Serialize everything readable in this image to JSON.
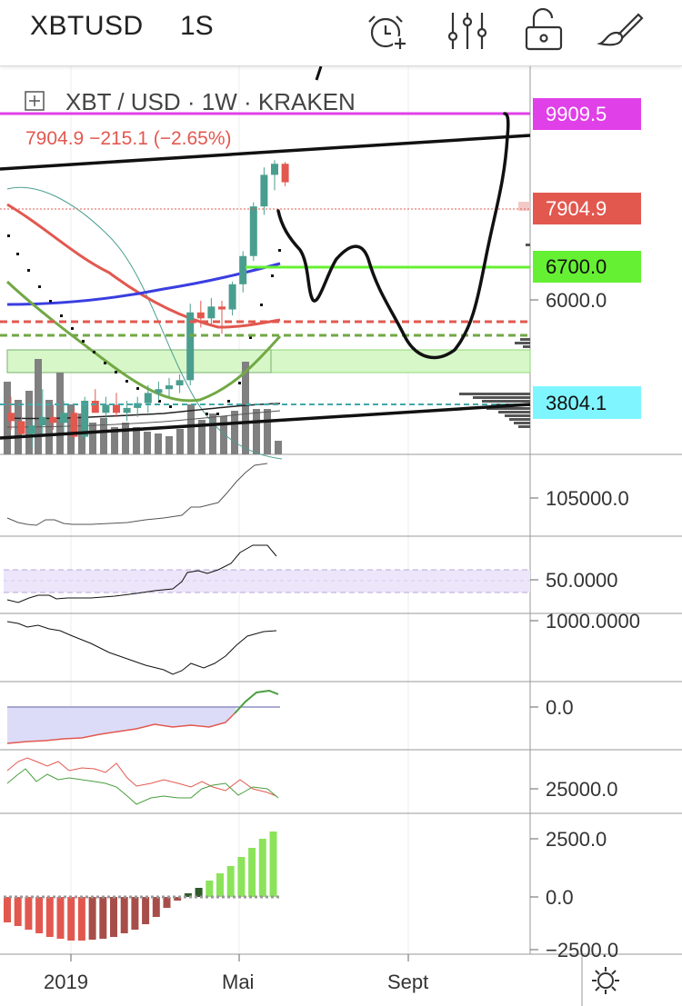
{
  "toolbar": {
    "symbol": "XBTUSD",
    "interval": "1S",
    "icons": [
      "alarm-add-icon",
      "indicators-icon",
      "lock-icon",
      "drawing-brush-icon"
    ]
  },
  "legend": {
    "title": "XBT / USD · 1W · KRAKEN",
    "quote": "7904.9  −215.1 (−2.65%)"
  },
  "colors": {
    "up": "#4a9e8f",
    "down": "#e2584f",
    "magenta": "#e040e8",
    "green_level": "#66f033",
    "cyan_level": "#7ff6ff",
    "ma_blue": "#3a3ee0",
    "ma_red": "#e2584f",
    "ma_green": "#72a845"
  },
  "price_tags": [
    {
      "label": "9909.5",
      "price": 9909.5,
      "color": "#e040e8"
    },
    {
      "label": "7904.9",
      "price": 7904.9,
      "color": "#e2584f"
    },
    {
      "label": "6700.0",
      "price": 6700.0,
      "color": "#66f033"
    },
    {
      "label": "6000.0",
      "price": 6000.0,
      "color": ""
    },
    {
      "label": "3804.1",
      "price": 3804.1,
      "color": "#7ff6ff"
    }
  ],
  "panes": [
    {
      "name": "volume-oscillator",
      "label": "105000.0"
    },
    {
      "name": "rsi",
      "label": "50.0000"
    },
    {
      "name": "indicator-3",
      "label": "1000.0000"
    },
    {
      "name": "indicator-4",
      "label": "0.0"
    },
    {
      "name": "indicator-5",
      "label": "25000.0"
    },
    {
      "name": "momentum-histogram",
      "labels": [
        "2500.0",
        "0.0",
        "−2500.0"
      ]
    }
  ],
  "time_axis": {
    "labels": [
      "2019",
      "Mai",
      "Sept"
    ]
  },
  "chart_data": {
    "type": "candlestick",
    "candles_approx": [
      [
        3700,
        3900,
        3500,
        3600
      ],
      [
        3600,
        3750,
        3400,
        3450
      ],
      [
        3450,
        3600,
        3300,
        3550
      ],
      [
        3550,
        4000,
        3450,
        3650
      ],
      [
        3650,
        3800,
        3500,
        3580
      ],
      [
        3580,
        3850,
        3450,
        3700
      ],
      [
        3700,
        3750,
        3400,
        3420
      ],
      [
        3420,
        3900,
        3380,
        3850
      ],
      [
        3850,
        4000,
        3750,
        3700
      ],
      [
        3700,
        3900,
        3550,
        3800
      ],
      [
        3800,
        3950,
        3650,
        3700
      ],
      [
        3700,
        3850,
        3600,
        3760
      ],
      [
        3760,
        3900,
        3650,
        3820
      ],
      [
        3820,
        4050,
        3700,
        3950
      ],
      [
        3950,
        4100,
        3850,
        4000
      ],
      [
        4000,
        4150,
        3900,
        4050
      ],
      [
        4050,
        4200,
        3950,
        4120
      ],
      [
        4120,
        5300,
        4050,
        5150
      ],
      [
        5150,
        5350,
        4900,
        5050
      ],
      [
        5050,
        5400,
        4950,
        5250
      ],
      [
        5250,
        5350,
        4800,
        5200
      ],
      [
        5200,
        5700,
        5100,
        5650
      ],
      [
        5650,
        6300,
        5500,
        6200
      ],
      [
        6200,
        7400,
        6100,
        7300
      ],
      [
        7300,
        8300,
        7100,
        8100
      ],
      [
        8100,
        8500,
        7700,
        8400
      ],
      [
        8400,
        8450,
        7800,
        7904.9
      ]
    ],
    "price_levels": [
      9909.5,
      7904.9,
      6700.0,
      3804.1
    ],
    "ylim": [
      3100,
      10600
    ]
  }
}
